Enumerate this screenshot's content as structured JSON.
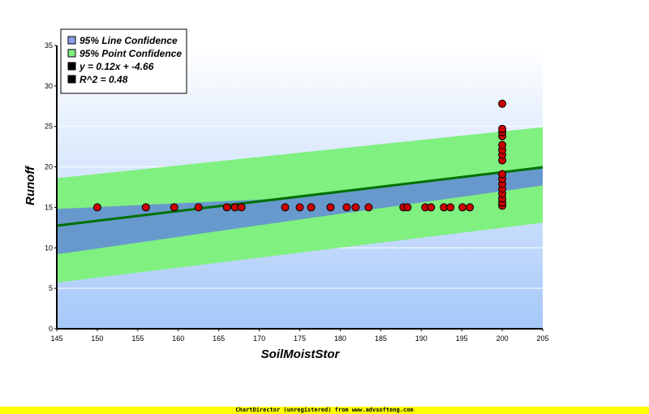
{
  "chart_data": {
    "type": "scatter",
    "xlabel": "SoilMoistStor",
    "ylabel": "Runoff",
    "xlim": [
      145,
      205
    ],
    "ylim": [
      0,
      35
    ],
    "xticks": [
      145,
      150,
      155,
      160,
      165,
      170,
      175,
      180,
      185,
      190,
      195,
      200,
      205
    ],
    "yticks": [
      0,
      5,
      10,
      15,
      20,
      25,
      30,
      35
    ],
    "grid": true,
    "legend_position": "top-left",
    "legend": [
      {
        "label": "95% Line Confidence",
        "color": "#8c9ee8"
      },
      {
        "label": "95% Point Confidence",
        "color": "#80f080"
      },
      {
        "label": "y = 0.12x + -4.66",
        "color": "#000000"
      },
      {
        "label": "R^2 = 0.48",
        "color": "#000000"
      }
    ],
    "regression": {
      "slope": 0.12,
      "intercept": -4.66,
      "r2": 0.48,
      "color": "#007000"
    },
    "line_confidence_band": {
      "x": [
        145,
        175,
        205
      ],
      "lower": [
        9.2,
        13.5,
        17.7
      ],
      "upper": [
        14.8,
        16.2,
        20.1
      ]
    },
    "point_confidence_band": {
      "x": [
        145,
        205
      ],
      "lower": [
        5.7,
        13.1
      ],
      "upper": [
        18.6,
        24.9
      ]
    },
    "points_color": "#cc0000",
    "points": [
      {
        "x": 150,
        "y": 15.0
      },
      {
        "x": 156,
        "y": 15.0
      },
      {
        "x": 159.5,
        "y": 15.0
      },
      {
        "x": 162.5,
        "y": 15.0
      },
      {
        "x": 166,
        "y": 15.0
      },
      {
        "x": 167,
        "y": 15.0
      },
      {
        "x": 167.8,
        "y": 15.0
      },
      {
        "x": 173.2,
        "y": 15.0
      },
      {
        "x": 175,
        "y": 15.0
      },
      {
        "x": 176.4,
        "y": 15.0
      },
      {
        "x": 178.8,
        "y": 15.0
      },
      {
        "x": 180.8,
        "y": 15.0
      },
      {
        "x": 181.9,
        "y": 15.0
      },
      {
        "x": 183.5,
        "y": 15.0
      },
      {
        "x": 187.8,
        "y": 15.0
      },
      {
        "x": 188.3,
        "y": 15.0
      },
      {
        "x": 190.5,
        "y": 15.0
      },
      {
        "x": 191.2,
        "y": 15.0
      },
      {
        "x": 192.8,
        "y": 15.0
      },
      {
        "x": 193.6,
        "y": 15.0
      },
      {
        "x": 195.1,
        "y": 15.0
      },
      {
        "x": 196,
        "y": 15.0
      },
      {
        "x": 200,
        "y": 15.2
      },
      {
        "x": 200,
        "y": 15.6
      },
      {
        "x": 200,
        "y": 16.1
      },
      {
        "x": 200,
        "y": 16.7
      },
      {
        "x": 200,
        "y": 17.3
      },
      {
        "x": 200,
        "y": 17.9
      },
      {
        "x": 200,
        "y": 18.5
      },
      {
        "x": 200,
        "y": 19.1
      },
      {
        "x": 200,
        "y": 20.8
      },
      {
        "x": 200,
        "y": 21.5
      },
      {
        "x": 200,
        "y": 22.1
      },
      {
        "x": 200,
        "y": 22.7
      },
      {
        "x": 200,
        "y": 23.8
      },
      {
        "x": 200,
        "y": 24.3
      },
      {
        "x": 200,
        "y": 24.7
      },
      {
        "x": 200,
        "y": 27.8
      }
    ]
  },
  "footer": {
    "text": "ChartDirector (unregistered) from www.advsofteng.com"
  }
}
